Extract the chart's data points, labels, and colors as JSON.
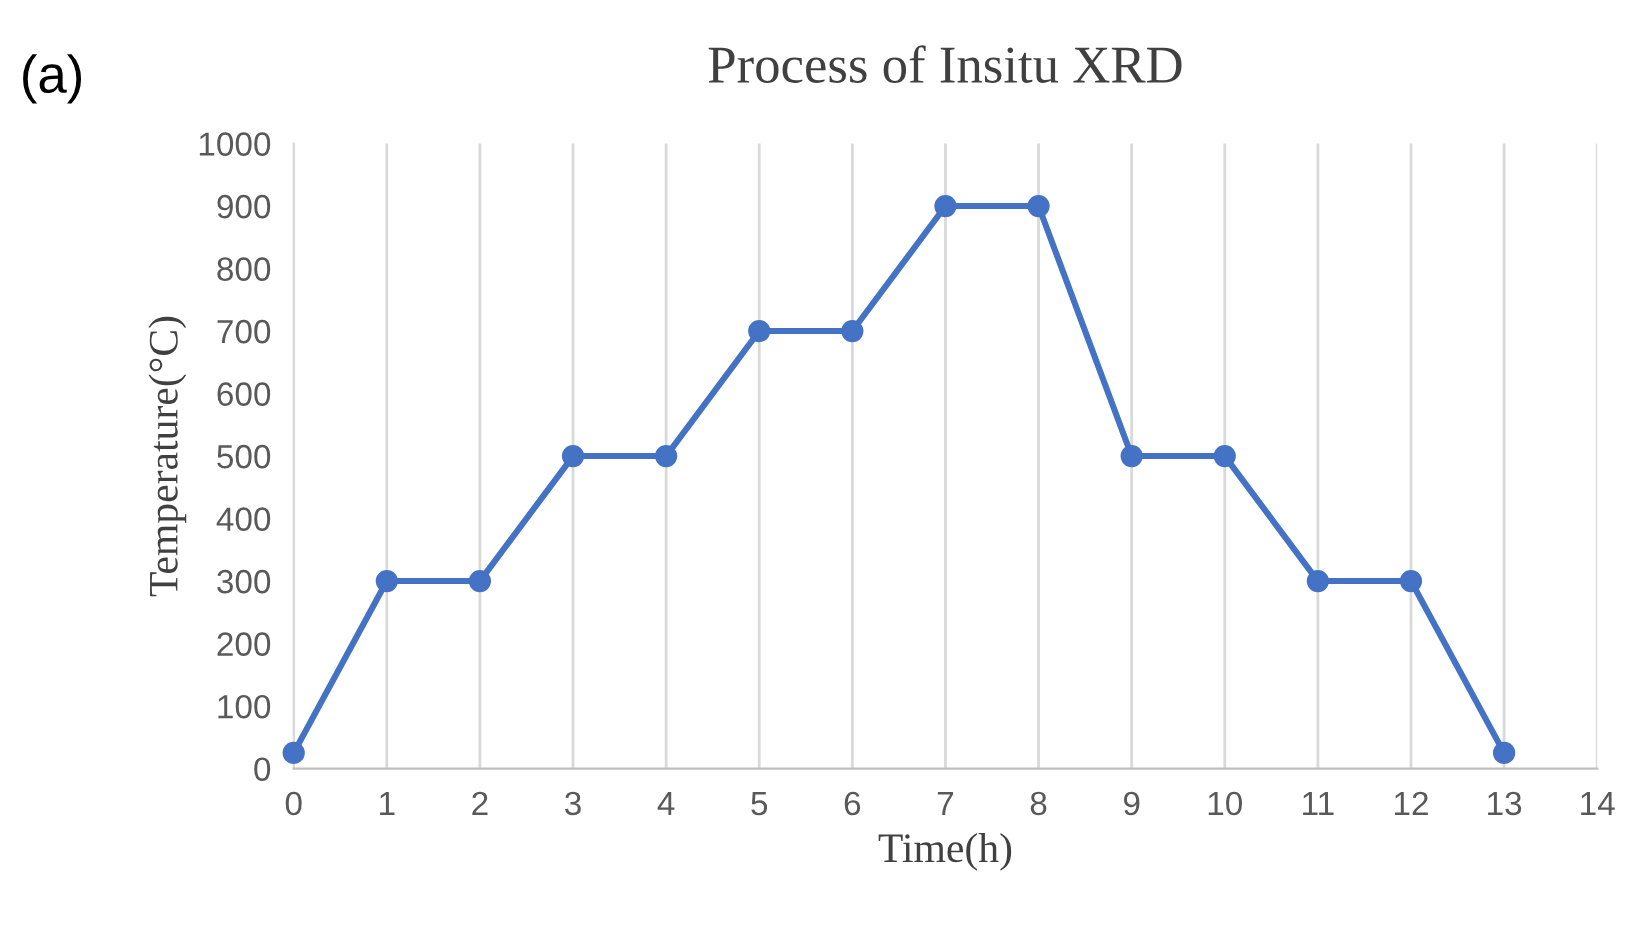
{
  "chart_data": {
    "type": "line",
    "title": "Process of Insitu XRD",
    "xlabel": "Time(h)",
    "ylabel": "Temperature(°C)",
    "x": [
      0,
      1,
      2,
      3,
      4,
      5,
      6,
      7,
      8,
      9,
      10,
      11,
      12,
      13
    ],
    "series": [
      {
        "color": "#4472c4",
        "values": [
          25,
          300,
          300,
          500,
          500,
          700,
          700,
          900,
          900,
          500,
          500,
          300,
          300,
          25
        ]
      }
    ],
    "xlim": [
      0,
      14
    ],
    "xticks": [
      0,
      1,
      2,
      3,
      4,
      5,
      6,
      7,
      8,
      9,
      10,
      11,
      12,
      13,
      14
    ],
    "ylim": [
      0,
      1000
    ],
    "yticks": [
      0,
      100,
      200,
      300,
      400,
      500,
      600,
      700,
      800,
      900,
      1000
    ],
    "grid": "x",
    "marker": "circle",
    "line_style": "solid",
    "legend": false,
    "annotations": [
      "(a)"
    ]
  }
}
